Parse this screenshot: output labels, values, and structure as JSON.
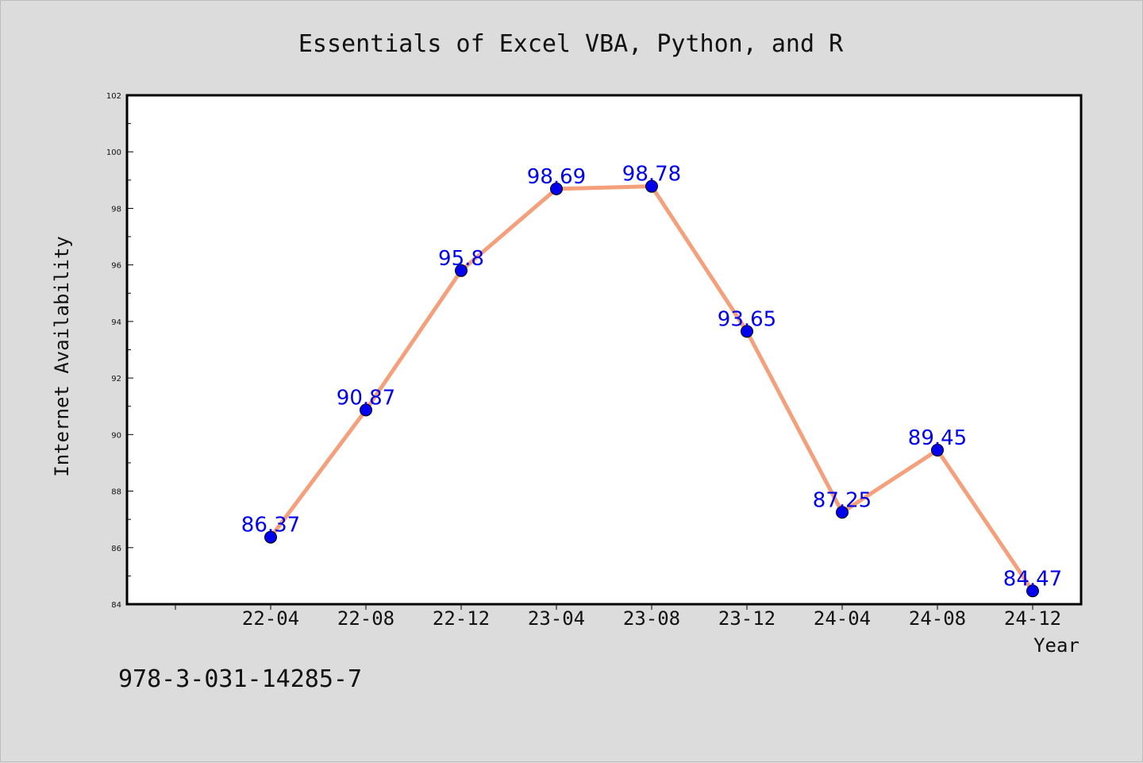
{
  "chart_data": {
    "type": "line",
    "title": "Essentials of Excel VBA, Python, and R",
    "xlabel": "Year",
    "ylabel": "Internet Availability",
    "categories": [
      "22-04",
      "22-08",
      "22-12",
      "23-04",
      "23-08",
      "23-12",
      "24-04",
      "24-08",
      "24-12"
    ],
    "series": [
      {
        "values": [
          86.37,
          90.87,
          95.8,
          98.69,
          98.78,
          93.65,
          87.25,
          89.45,
          84.47
        ],
        "labels": [
          "86.37",
          "90.87",
          "95.8",
          "98.69",
          "98.78",
          "93.65",
          "87.25",
          "89.45",
          "84.47"
        ],
        "line_color": "#f4a07c",
        "marker_color": "#0000ee",
        "label_color": "#0000ee"
      }
    ],
    "ylim": [
      84,
      102
    ],
    "yticks": [
      "84",
      "86",
      "88",
      "90",
      "92",
      "94",
      "96",
      "98",
      "100",
      "102"
    ],
    "grid": false,
    "legend": "none"
  },
  "footnote": "978-3-031-14285-7",
  "colors": {
    "background": "#dcdcdc",
    "plot_background": "#ffffff",
    "axis": "#000000"
  }
}
